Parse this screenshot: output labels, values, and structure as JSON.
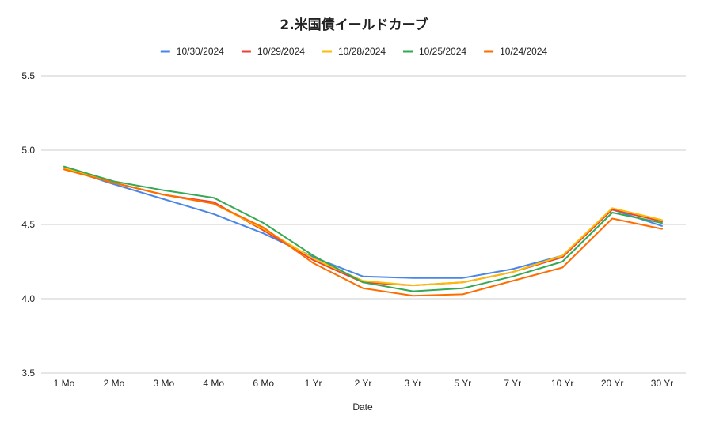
{
  "chart_data": {
    "type": "line",
    "title": "2.米国債イールドカーブ",
    "xlabel": "Date",
    "ylabel": "",
    "ylim": [
      3.5,
      5.5
    ],
    "yticks": [
      "3.5",
      "4.0",
      "4.5",
      "5.0",
      "5.5"
    ],
    "ytick_values": [
      3.5,
      4.0,
      4.5,
      5.0,
      5.5
    ],
    "grid": true,
    "legend_position": "top",
    "categories": [
      "1 Mo",
      "2 Mo",
      "3 Mo",
      "4 Mo",
      "6 Mo",
      "1 Yr",
      "2 Yr",
      "3 Yr",
      "5 Yr",
      "7 Yr",
      "10 Yr",
      "20 Yr",
      "30 Yr"
    ],
    "series": [
      {
        "name": "10/30/2024",
        "color": "#4a86e8",
        "values": [
          4.88,
          4.77,
          4.67,
          4.57,
          4.44,
          4.28,
          4.15,
          4.14,
          4.14,
          4.2,
          4.29,
          4.6,
          4.49
        ]
      },
      {
        "name": "10/29/2024",
        "color": "#ea4335",
        "values": [
          4.88,
          4.78,
          4.7,
          4.65,
          4.46,
          4.26,
          4.11,
          4.09,
          4.11,
          4.18,
          4.28,
          4.6,
          4.52
        ]
      },
      {
        "name": "10/28/2024",
        "color": "#fbbc04",
        "values": [
          4.88,
          4.78,
          4.7,
          4.64,
          4.47,
          4.27,
          4.12,
          4.09,
          4.11,
          4.18,
          4.29,
          4.61,
          4.53
        ]
      },
      {
        "name": "10/25/2024",
        "color": "#34a853",
        "values": [
          4.89,
          4.79,
          4.73,
          4.68,
          4.51,
          4.29,
          4.11,
          4.05,
          4.07,
          4.15,
          4.25,
          4.58,
          4.51
        ]
      },
      {
        "name": "10/24/2024",
        "color": "#ff6d01",
        "values": [
          4.87,
          4.78,
          4.7,
          4.64,
          4.48,
          4.24,
          4.07,
          4.02,
          4.03,
          4.12,
          4.21,
          4.54,
          4.47
        ]
      }
    ]
  }
}
